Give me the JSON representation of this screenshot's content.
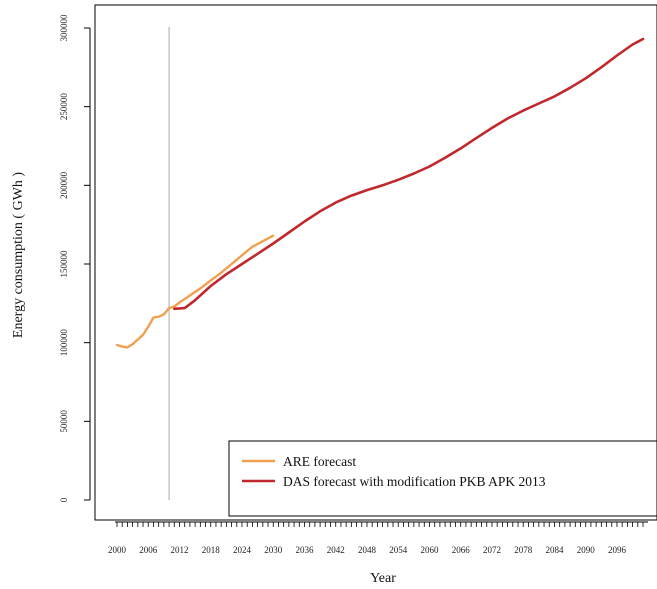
{
  "chart_data": {
    "type": "line",
    "title": "",
    "xlabel": "Year",
    "ylabel": "Energy consumption ( GWh )",
    "xlim": [
      1999,
      2102
    ],
    "ylim": [
      -10000,
      308000
    ],
    "x_ticks": [
      2000,
      2006,
      2012,
      2018,
      2024,
      2030,
      2036,
      2042,
      2048,
      2054,
      2060,
      2066,
      2072,
      2078,
      2084,
      2090,
      2096
    ],
    "x_tick_labels": [
      "2000",
      "2006",
      "2012",
      "2018",
      "2024",
      "2030",
      "2036",
      "2042",
      "2048",
      "2054",
      "2060",
      "2066",
      "2072",
      "2078",
      "2084",
      "2090",
      "2096"
    ],
    "y_ticks": [
      0,
      50000,
      100000,
      150000,
      200000,
      250000,
      300000
    ],
    "y_tick_labels": [
      "0",
      "50000",
      "100000",
      "150000",
      "200000",
      "250000",
      "300000"
    ],
    "vline_x": 2010,
    "legend_position": "bottom-right",
    "grid": false,
    "series": [
      {
        "name": "ARE forecast",
        "color": "#f0a050",
        "x": [
          2000,
          2001,
          2002,
          2003,
          2004,
          2005,
          2006,
          2007,
          2008,
          2009,
          2010,
          2011,
          2012,
          2014,
          2016,
          2018,
          2020,
          2022,
          2024,
          2026,
          2028,
          2030
        ],
        "y": [
          98500,
          97500,
          97000,
          99000,
          102000,
          105000,
          110000,
          116000,
          116500,
          118000,
          122000,
          123000,
          125500,
          130000,
          134500,
          139500,
          144500,
          150000,
          155500,
          161000,
          164500,
          168000
        ]
      },
      {
        "name": "DAS forecast with modification PKB APK 2013",
        "color": "#c0282d",
        "x": [
          2011,
          2013,
          2015,
          2018,
          2021,
          2024,
          2027,
          2030,
          2033,
          2036,
          2039,
          2042,
          2045,
          2048,
          2051,
          2054,
          2057,
          2060,
          2063,
          2066,
          2069,
          2072,
          2075,
          2078,
          2081,
          2084,
          2087,
          2090,
          2093,
          2096,
          2099,
          2101
        ],
        "y": [
          121500,
          122000,
          127000,
          136000,
          143500,
          150000,
          156500,
          163000,
          170000,
          177000,
          183500,
          189000,
          193500,
          197000,
          200000,
          203500,
          207500,
          212000,
          217500,
          223500,
          230000,
          236500,
          242500,
          247500,
          252000,
          256500,
          262000,
          268000,
          275000,
          282500,
          289500,
          293000
        ]
      }
    ]
  }
}
